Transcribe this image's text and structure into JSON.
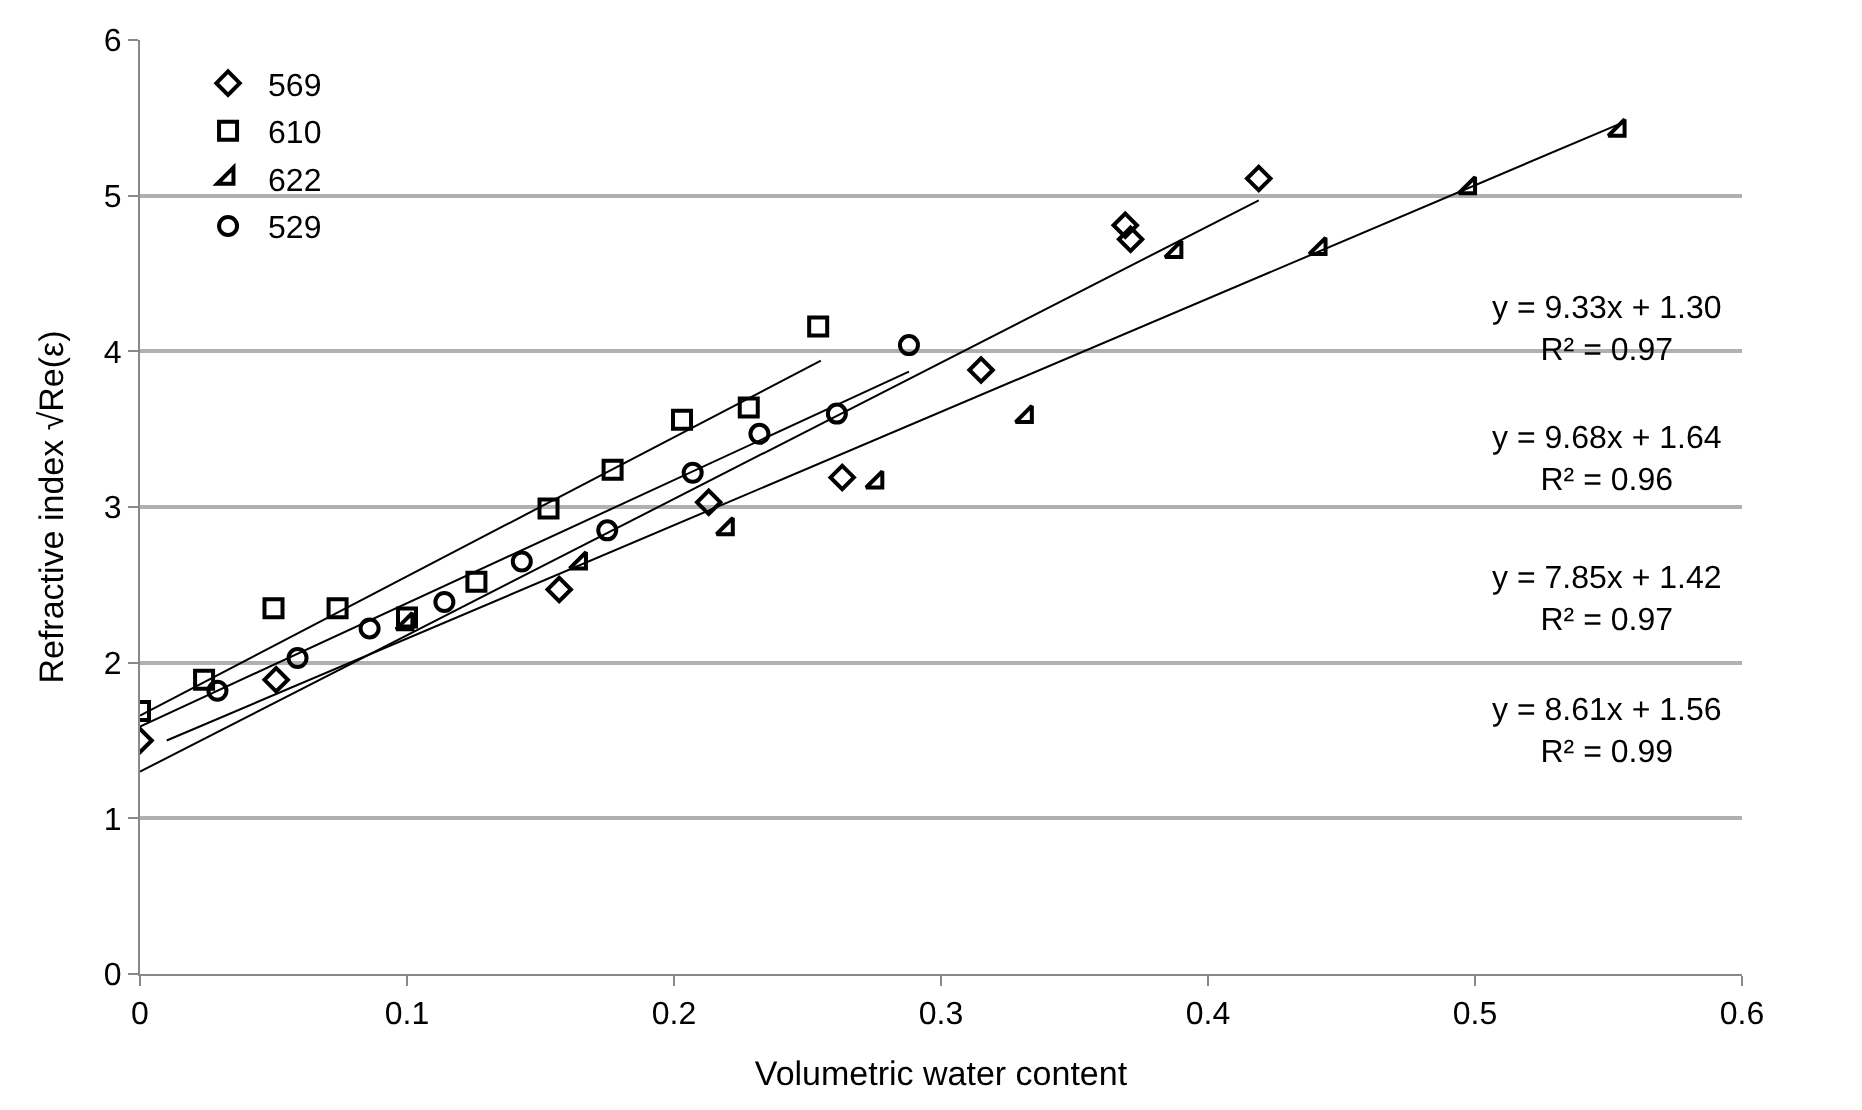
{
  "chart_data": {
    "type": "scatter",
    "xlabel": "Volumetric water content",
    "ylabel": "Refractive index √Re(ε)",
    "xlim": [
      0,
      0.6
    ],
    "xticks": [
      0,
      0.1,
      0.2,
      0.3,
      0.4,
      0.5,
      0.6
    ],
    "ylim": [
      0,
      6
    ],
    "yticks": [
      0,
      1,
      2,
      3,
      4,
      5,
      6
    ],
    "grid": "y",
    "legend": "top left",
    "series": [
      {
        "name": "569",
        "color": "#000000",
        "marker": "diamond",
        "x": [
          0,
          0.051,
          0.157,
          0.213,
          0.263,
          0.315,
          0.369,
          0.371,
          0.419
        ],
        "values": [
          1.5,
          1.89,
          2.47,
          3.03,
          3.19,
          3.88,
          4.81,
          4.72,
          5.11
        ]
      },
      {
        "name": "610",
        "color": "#000000",
        "marker": "square",
        "x": [
          0,
          0.024,
          0.05,
          0.074,
          0.1,
          0.126,
          0.153,
          0.177,
          0.203,
          0.228,
          0.254
        ],
        "values": [
          1.69,
          1.89,
          2.35,
          2.35,
          2.29,
          2.52,
          2.99,
          3.24,
          3.56,
          3.64,
          4.16
        ]
      },
      {
        "name": "622",
        "color": "#000000",
        "marker": "triangle",
        "x": [
          0.1,
          0.165,
          0.22,
          0.276,
          0.332,
          0.388,
          0.442,
          0.498,
          0.554
        ],
        "values": [
          2.25,
          2.64,
          2.86,
          3.16,
          3.58,
          4.64,
          4.66,
          5.05,
          5.42
        ]
      },
      {
        "name": "529",
        "color": "#000000",
        "marker": "circle",
        "x": [
          0.029,
          0.059,
          0.086,
          0.1,
          0.114,
          0.143,
          0.175,
          0.207,
          0.232,
          0.261,
          0.288
        ],
        "values": [
          1.82,
          2.03,
          2.22,
          null,
          2.39,
          2.65,
          2.85,
          3.22,
          3.47,
          3.6,
          4.04
        ]
      },
      {
        "type": "line",
        "color": "#000000",
        "x": [
          0,
          0.419
        ],
        "values": [
          1.3,
          4.97
        ]
      },
      {
        "type": "line",
        "color": "#000000",
        "x": [
          0,
          0.255
        ],
        "values": [
          1.66,
          3.94
        ]
      },
      {
        "type": "line",
        "color": "#000000",
        "x": [
          0.01,
          0.554
        ],
        "values": [
          1.5,
          5.46
        ]
      },
      {
        "type": "line",
        "color": "#000000",
        "x": [
          0,
          0.288
        ],
        "values": [
          1.59,
          3.87
        ]
      }
    ],
    "annotations": [
      "y = 9.33x + 1.30\nR² = 0.97",
      "y = 9.68x + 1.64\nR² = 0.96",
      "y = 7.85x + 1.42\nR² = 0.97",
      "y = 8.61x + 1.56\nR² = 0.99"
    ]
  }
}
